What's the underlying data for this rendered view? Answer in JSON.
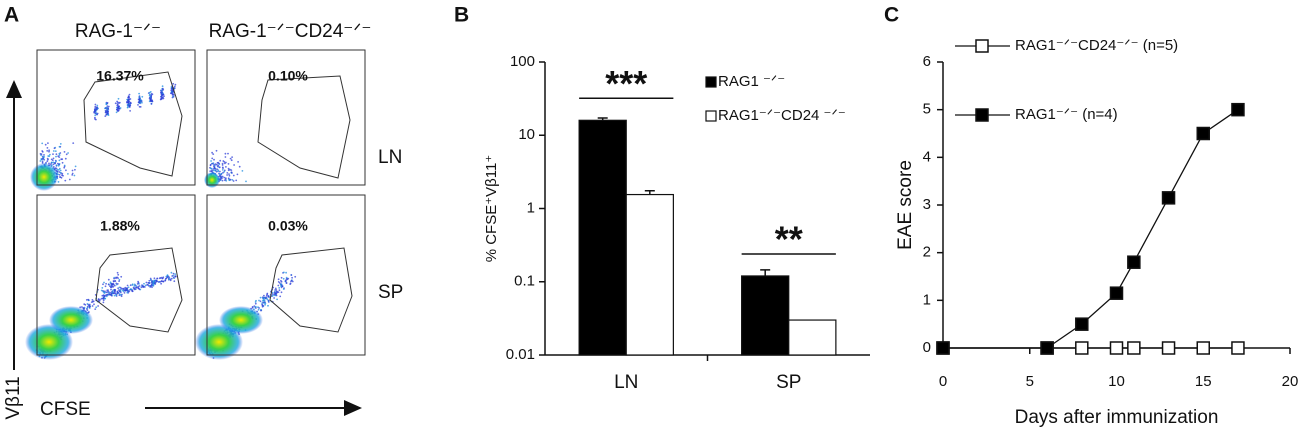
{
  "panel_labels": [
    "A",
    "B",
    "C"
  ],
  "flow": {
    "column_headers": [
      "RAG-1⁻ᐟ⁻",
      "RAG-1⁻ᐟ⁻CD24⁻ᐟ⁻"
    ],
    "row_labels": [
      "LN",
      "SP"
    ],
    "gate_percentages": [
      [
        "16.37%",
        "0.10%"
      ],
      [
        "1.88%",
        "0.03%"
      ]
    ],
    "x_label": "CFSE",
    "y_label": "Vβ11"
  },
  "chart_data": [
    {
      "type": "bar",
      "ylabel": "% CFSE⁺Vβ11⁺",
      "log_scale": true,
      "categories": [
        "LN",
        "SP"
      ],
      "series": [
        {
          "name": "RAG1 ⁻ᐟ⁻",
          "color": "#000000",
          "values": [
            16,
            0.12
          ],
          "errors": [
            1.2,
            0.025
          ]
        },
        {
          "name": "RAG1⁻ᐟ⁻CD24 ⁻ᐟ⁻",
          "color": "#ffffff",
          "values": [
            1.55,
            0.03
          ],
          "errors": [
            0.2,
            0
          ]
        }
      ],
      "annotations": [
        "***",
        "**"
      ],
      "ylim": [
        0.01,
        100
      ],
      "yticks": [
        0.01,
        0.1,
        1,
        10,
        100
      ]
    },
    {
      "type": "line",
      "xlabel": "Days after immunization",
      "ylabel": "EAE score",
      "x": [
        0,
        6,
        8,
        10,
        11,
        13,
        15,
        17
      ],
      "series": [
        {
          "name": "RAG1⁻ᐟ⁻CD24⁻ᐟ⁻  (n=5)",
          "color": "#ffffff",
          "values": [
            0,
            0,
            0,
            0,
            0,
            0,
            0,
            0
          ]
        },
        {
          "name": "RAG1⁻ᐟ⁻ (n=4)",
          "color": "#000000",
          "values": [
            0,
            0,
            0.5,
            1.15,
            1.8,
            3.15,
            4.5,
            5
          ]
        }
      ],
      "xlim": [
        0,
        20
      ],
      "xticks": [
        0,
        5,
        10,
        15,
        20
      ],
      "ylim": [
        0,
        6
      ],
      "yticks": [
        0,
        1,
        2,
        3,
        4,
        5,
        6
      ]
    }
  ]
}
